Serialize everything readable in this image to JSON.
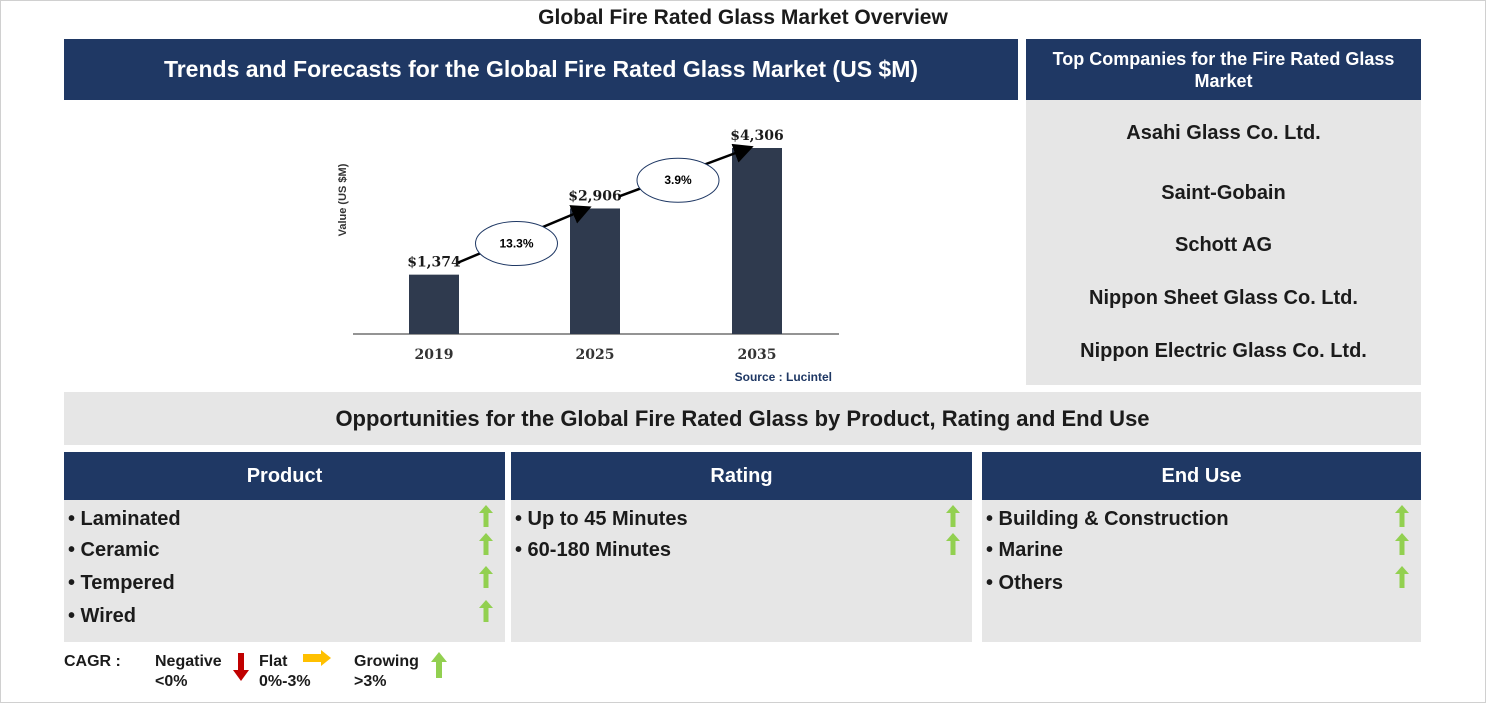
{
  "page": {
    "title": "Global Fire Rated Glass Market Overview"
  },
  "chart_panel": {
    "header": "Trends and Forecasts for the Global Fire Rated Glass Market (US $M)"
  },
  "chart_data": {
    "type": "bar",
    "categories": [
      "2019",
      "2025",
      "2035"
    ],
    "values": [
      1374,
      2906,
      4306
    ],
    "value_labels": [
      "$1,374",
      "$2,906",
      "$4,306"
    ],
    "ylabel": "Value (US $M)",
    "ylim": [
      0,
      4306
    ],
    "grid": false,
    "bar_color": "#2f3a4e",
    "cagr_annotations": [
      {
        "from": "2019",
        "to": "2025",
        "label": "13.3%"
      },
      {
        "from": "2025",
        "to": "2035",
        "label": "3.9%"
      }
    ],
    "source": "Source : Lucintel"
  },
  "companies": {
    "header": "Top Companies for the Fire Rated Glass Market",
    "items": [
      "Asahi Glass Co. Ltd.",
      "Saint-Gobain",
      "Schott AG",
      "Nippon Sheet Glass Co. Ltd.",
      "Nippon Electric Glass Co. Ltd."
    ]
  },
  "opportunities": {
    "title": "Opportunities for the Global Fire Rated Glass by Product, Rating and End Use"
  },
  "segments": [
    {
      "header": "Product",
      "items": [
        "• Laminated",
        "• Ceramic",
        "• Tempered",
        "• Wired"
      ],
      "trend": [
        "growing",
        "growing",
        "growing",
        "growing"
      ]
    },
    {
      "header": "Rating",
      "items": [
        "• Up to 45 Minutes",
        "• 60-180 Minutes"
      ],
      "trend": [
        "growing",
        "growing"
      ]
    },
    {
      "header": "End Use",
      "items": [
        "• Building & Construction",
        "• Marine",
        "• Others"
      ],
      "trend": [
        "growing",
        "growing",
        "growing"
      ]
    }
  ],
  "legend": {
    "label": "CAGR  :",
    "negative": {
      "name": "Negative",
      "range": "<0%",
      "color": "#c00000",
      "icon": "down-arrow-icon"
    },
    "flat": {
      "name": "Flat",
      "range": "0%-3%",
      "color": "#ffc000",
      "icon": "right-arrow-icon"
    },
    "growing": {
      "name": "Growing",
      "range": ">3%",
      "color": "#92d050",
      "icon": "up-arrow-icon"
    }
  },
  "colors": {
    "navy": "#1f3864",
    "panel_gray": "#e6e6e6",
    "growing_green": "#92d050"
  }
}
